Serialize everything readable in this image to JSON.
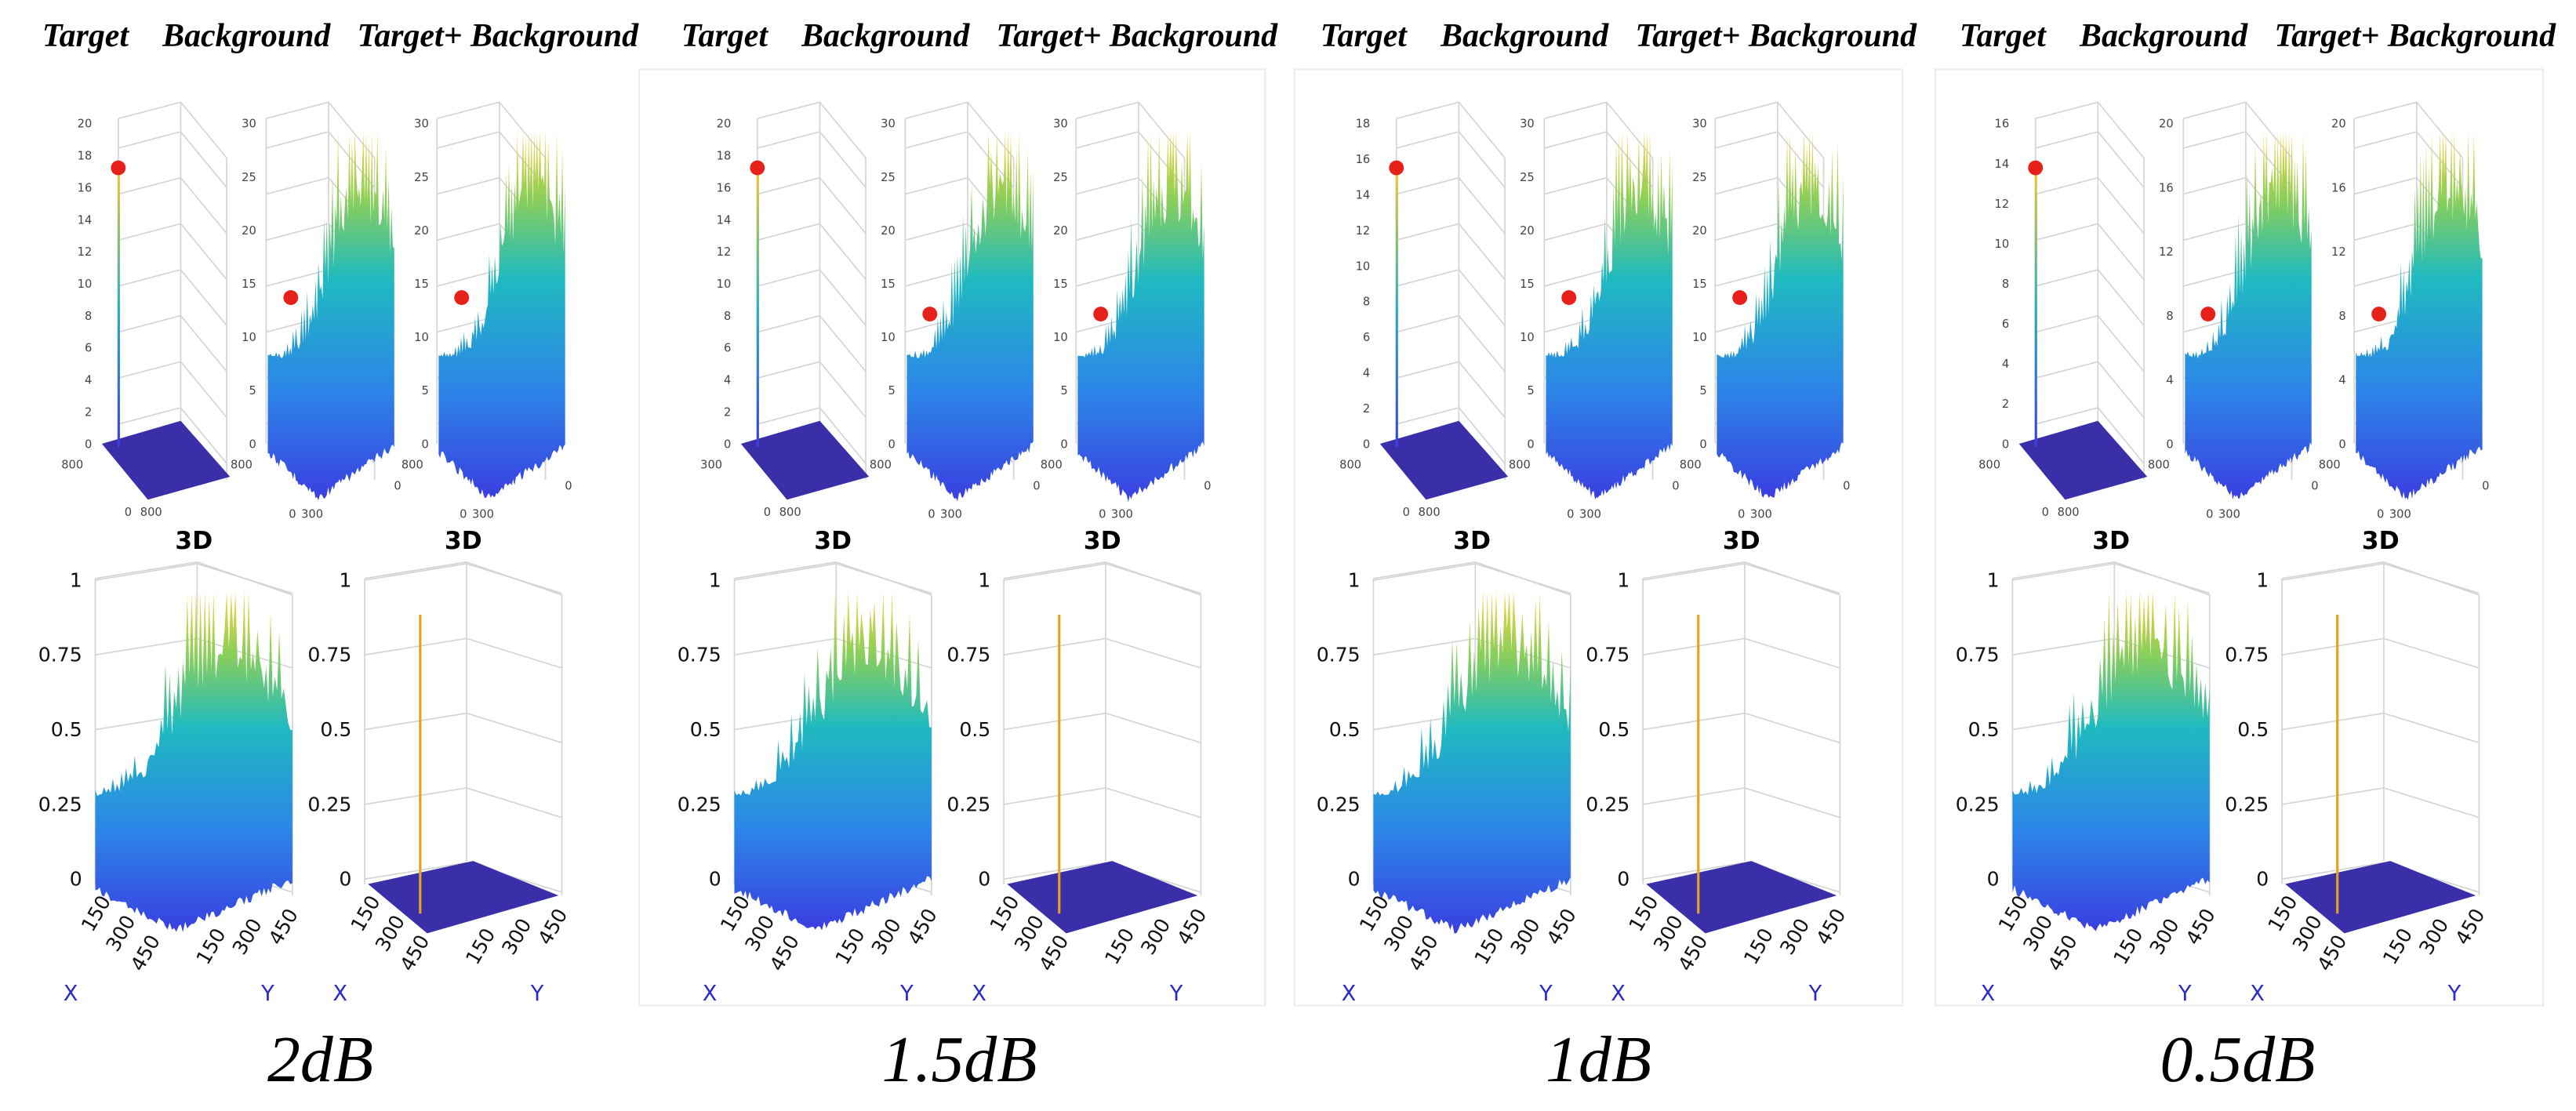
{
  "panels": [
    {
      "headers": [
        "Target",
        "Background",
        "Target+ Background"
      ],
      "top_plots": [
        {
          "zticks": [
            "20",
            "18",
            "16",
            "14",
            "12",
            "10",
            "8",
            "6",
            "4",
            "2",
            "0"
          ],
          "base_ticks": [
            "800",
            "0",
            "800"
          ]
        },
        {
          "zticks": [
            "30",
            "25",
            "20",
            "15",
            "10",
            "5",
            "0"
          ],
          "base_ticks": [
            "800",
            "0",
            "300",
            "0"
          ]
        },
        {
          "zticks": [
            "30",
            "25",
            "20",
            "15",
            "10",
            "5",
            "0"
          ],
          "base_ticks": [
            "800",
            "0",
            "300",
            "0"
          ]
        }
      ],
      "labels_3d": [
        "3D",
        "3D"
      ],
      "bottom_plots": [
        {
          "zticks": [
            "1",
            "0.75",
            "0.5",
            "0.25",
            "0"
          ],
          "xticks": [
            "150",
            "300",
            "450"
          ],
          "yticks": [
            "150",
            "300",
            "450"
          ],
          "axis_names": [
            "X",
            "Y"
          ]
        },
        {
          "zticks": [
            "1",
            "0.75",
            "0.5",
            "0.25",
            "0"
          ],
          "xticks": [
            "150",
            "300",
            "450"
          ],
          "yticks": [
            "150",
            "300",
            "450"
          ],
          "axis_names": [
            "X",
            "Y"
          ]
        }
      ],
      "caption": "2dB"
    },
    {
      "headers": [
        "Target",
        "Background",
        "Target+ Background"
      ],
      "top_plots": [
        {
          "zticks": [
            "20",
            "18",
            "16",
            "14",
            "12",
            "10",
            "8",
            "6",
            "4",
            "2",
            "0"
          ],
          "base_ticks": [
            "300",
            "0",
            "800"
          ]
        },
        {
          "zticks": [
            "30",
            "25",
            "20",
            "15",
            "10",
            "5",
            "0"
          ],
          "base_ticks": [
            "800",
            "0",
            "300",
            "0"
          ]
        },
        {
          "zticks": [
            "30",
            "25",
            "20",
            "15",
            "10",
            "5",
            "0"
          ],
          "base_ticks": [
            "800",
            "0",
            "300",
            "0"
          ]
        }
      ],
      "labels_3d": [
        "3D",
        "3D"
      ],
      "bottom_plots": [
        {
          "zticks": [
            "1",
            "0.75",
            "0.5",
            "0.25",
            "0"
          ],
          "xticks": [
            "150",
            "300",
            "450"
          ],
          "yticks": [
            "150",
            "300",
            "450"
          ],
          "axis_names": [
            "X",
            "Y"
          ]
        },
        {
          "zticks": [
            "1",
            "0.75",
            "0.5",
            "0.25",
            "0"
          ],
          "xticks": [
            "150",
            "300",
            "450"
          ],
          "yticks": [
            "150",
            "300",
            "450"
          ],
          "axis_names": [
            "X",
            "Y"
          ]
        }
      ],
      "caption": "1.5dB"
    },
    {
      "headers": [
        "Target",
        "Background",
        "Target+ Background"
      ],
      "top_plots": [
        {
          "zticks": [
            "18",
            "16",
            "14",
            "12",
            "10",
            "8",
            "6",
            "4",
            "2",
            "0"
          ],
          "base_ticks": [
            "800",
            "0",
            "800"
          ]
        },
        {
          "zticks": [
            "30",
            "25",
            "20",
            "15",
            "10",
            "5",
            "0"
          ],
          "base_ticks": [
            "800",
            "0",
            "300",
            "0"
          ]
        },
        {
          "zticks": [
            "30",
            "25",
            "20",
            "15",
            "10",
            "5",
            "0"
          ],
          "base_ticks": [
            "800",
            "0",
            "300",
            "0"
          ]
        }
      ],
      "labels_3d": [
        "3D",
        "3D"
      ],
      "bottom_plots": [
        {
          "zticks": [
            "1",
            "0.75",
            "0.5",
            "0.25",
            "0"
          ],
          "xticks": [
            "150",
            "300",
            "450"
          ],
          "yticks": [
            "150",
            "300",
            "450"
          ],
          "axis_names": [
            "X",
            "Y"
          ]
        },
        {
          "zticks": [
            "1",
            "0.75",
            "0.5",
            "0.25",
            "0"
          ],
          "xticks": [
            "150",
            "300",
            "450"
          ],
          "yticks": [
            "150",
            "300",
            "450"
          ],
          "axis_names": [
            "X",
            "Y"
          ]
        }
      ],
      "caption": "1dB"
    },
    {
      "headers": [
        "Target",
        "Background",
        "Target+ Background"
      ],
      "top_plots": [
        {
          "zticks": [
            "16",
            "14",
            "12",
            "10",
            "8",
            "6",
            "4",
            "2",
            "0"
          ],
          "base_ticks": [
            "800",
            "0",
            "800"
          ]
        },
        {
          "zticks": [
            "20",
            "16",
            "12",
            "8",
            "4",
            "0"
          ],
          "base_ticks": [
            "800",
            "0",
            "300",
            "0"
          ]
        },
        {
          "zticks": [
            "20",
            "16",
            "12",
            "8",
            "4",
            "0"
          ],
          "base_ticks": [
            "800",
            "0",
            "300",
            "0"
          ]
        }
      ],
      "labels_3d": [
        "3D",
        "3D"
      ],
      "bottom_plots": [
        {
          "zticks": [
            "1",
            "0.75",
            "0.5",
            "0.25",
            "0"
          ],
          "xticks": [
            "150",
            "300",
            "450"
          ],
          "yticks": [
            "150",
            "300",
            "450"
          ],
          "axis_names": [
            "X",
            "Y"
          ]
        },
        {
          "zticks": [
            "1",
            "0.75",
            "0.5",
            "0.25",
            "0"
          ],
          "xticks": [
            "150",
            "300",
            "450"
          ],
          "yticks": [
            "150",
            "300",
            "450"
          ],
          "axis_names": [
            "X",
            "Y"
          ]
        }
      ],
      "caption": "0.5dB"
    }
  ]
}
